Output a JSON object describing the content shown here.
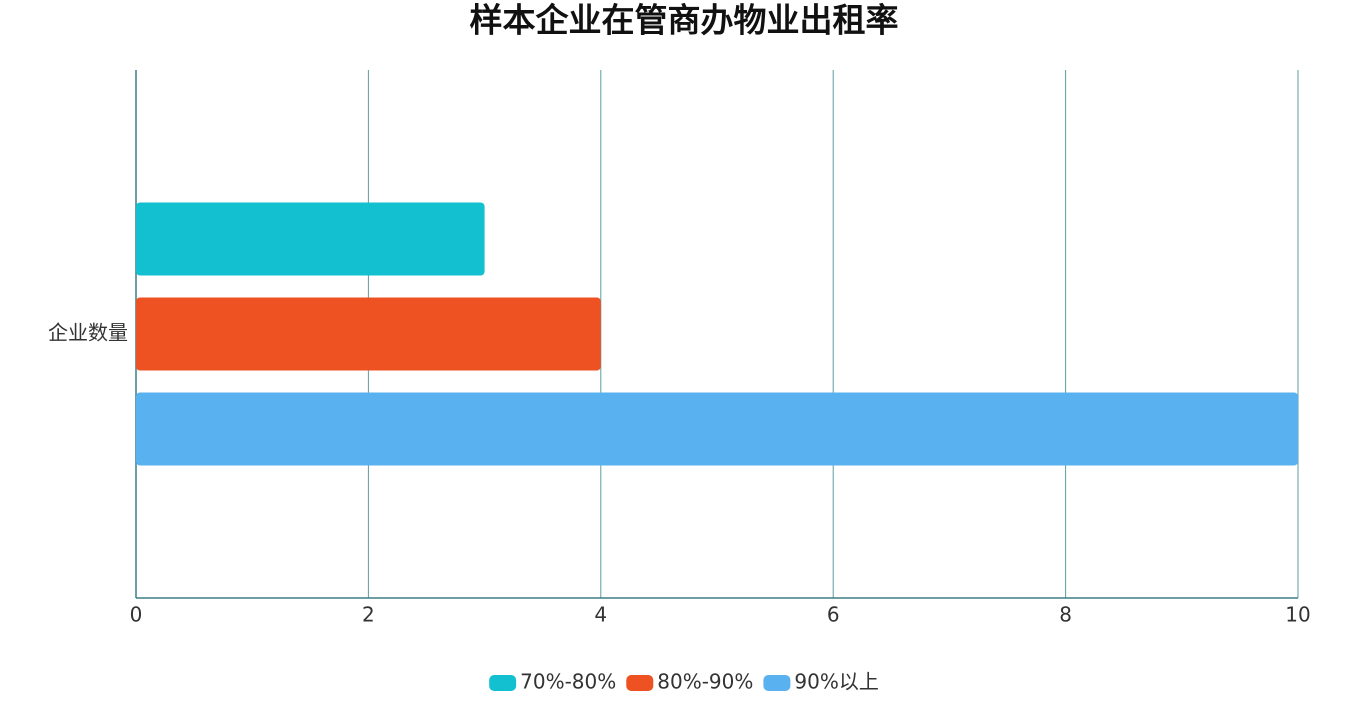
{
  "chart_data": {
    "type": "hbar",
    "title": "样本企业在管商办物业出租率",
    "categories": [
      "企业数量"
    ],
    "series": [
      {
        "name": "70%-80%",
        "color": "#13c0d0",
        "values": [
          3
        ]
      },
      {
        "name": "80%-90%",
        "color": "#ee5222",
        "values": [
          4
        ]
      },
      {
        "name": "90%以上",
        "color": "#5ab1ef",
        "values": [
          10
        ]
      }
    ],
    "xlim": [
      0,
      10
    ],
    "xticks": [
      0,
      2,
      4,
      6,
      8,
      10
    ],
    "grid": true,
    "legend": "bottom"
  }
}
